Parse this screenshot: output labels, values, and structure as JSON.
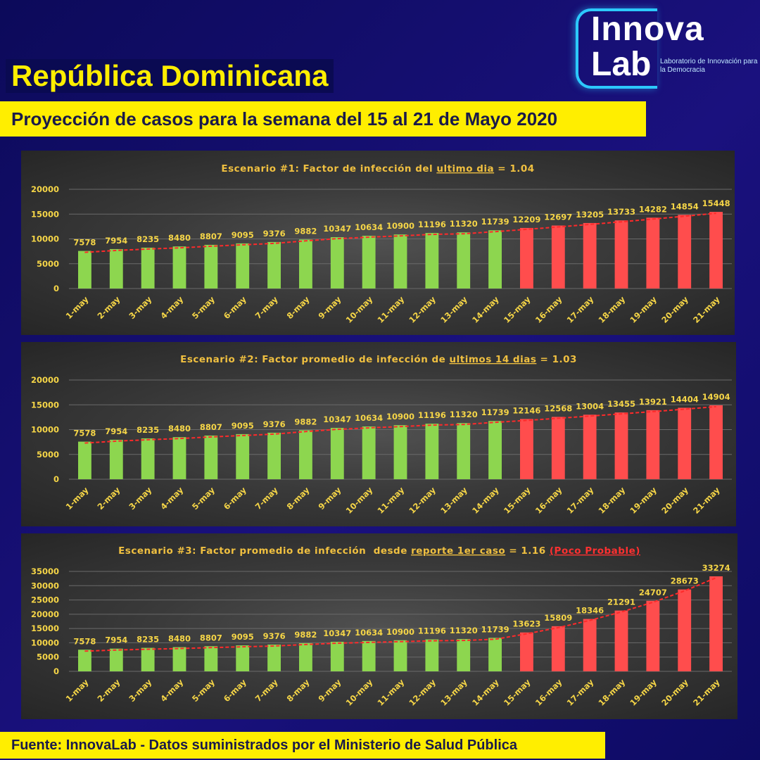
{
  "header": {
    "title": "República Dominicana",
    "subtitle": "Proyección de casos para la semana del 15 al 21 de Mayo 2020"
  },
  "logo": {
    "line1": "Innova",
    "line2": "Lab",
    "tagline": "Laboratorio de Innovación para la Democracia"
  },
  "footer": {
    "source": "Fuente: InnovaLab - Datos suministrados por el Ministerio de Salud Pública"
  },
  "colors": {
    "observed": "#8dd64f",
    "projected": "#ff4d4d",
    "trend": "#ff2a2a",
    "labels": "#f5d547",
    "title_text": "#f0c040"
  },
  "chart_data": [
    {
      "type": "bar",
      "title_parts": [
        {
          "text": "Escenario #1: Factor de infección del ",
          "style": "normal"
        },
        {
          "text": "ultimo dia",
          "style": "underline"
        },
        {
          "text": " = 1.04",
          "style": "normal"
        }
      ],
      "categories": [
        "1-may",
        "2-may",
        "3-may",
        "4-may",
        "5-may",
        "6-may",
        "7-may",
        "8-may",
        "9-may",
        "10-may",
        "11-may",
        "12-may",
        "13-may",
        "14-may",
        "15-may",
        "16-may",
        "17-may",
        "18-may",
        "19-may",
        "20-may",
        "21-may"
      ],
      "series": [
        {
          "values": [
            7578,
            7954,
            8235,
            8480,
            8807,
            9095,
            9376,
            9882,
            10347,
            10634,
            10900,
            11196,
            11320,
            11739,
            null,
            null,
            null,
            null,
            null,
            null,
            null
          ]
        },
        {
          "values": [
            null,
            null,
            null,
            null,
            null,
            null,
            null,
            null,
            null,
            null,
            null,
            null,
            null,
            null,
            12209,
            12697,
            13205,
            13733,
            14282,
            14854,
            15448
          ]
        }
      ],
      "ylim": [
        0,
        20000
      ],
      "yticks": [
        0,
        5000,
        10000,
        15000,
        20000
      ],
      "trendline": true,
      "grid": true
    },
    {
      "type": "bar",
      "title_parts": [
        {
          "text": "Escenario #2: Factor promedio de infección de ",
          "style": "normal"
        },
        {
          "text": "ultimos 14 dias",
          "style": "underline"
        },
        {
          "text": " = 1.03",
          "style": "normal"
        }
      ],
      "categories": [
        "1-may",
        "2-may",
        "3-may",
        "4-may",
        "5-may",
        "6-may",
        "7-may",
        "8-may",
        "9-may",
        "10-may",
        "11-may",
        "12-may",
        "13-may",
        "14-may",
        "15-may",
        "16-may",
        "17-may",
        "18-may",
        "19-may",
        "20-may",
        "21-may"
      ],
      "series": [
        {
          "values": [
            7578,
            7954,
            8235,
            8480,
            8807,
            9095,
            9376,
            9882,
            10347,
            10634,
            10900,
            11196,
            11320,
            11739,
            null,
            null,
            null,
            null,
            null,
            null,
            null
          ]
        },
        {
          "values": [
            null,
            null,
            null,
            null,
            null,
            null,
            null,
            null,
            null,
            null,
            null,
            null,
            null,
            null,
            12146,
            12568,
            13004,
            13455,
            13921,
            14404,
            14904
          ]
        }
      ],
      "ylim": [
        0,
        20000
      ],
      "yticks": [
        0,
        5000,
        10000,
        15000,
        20000
      ],
      "trendline": true,
      "grid": true
    },
    {
      "type": "bar",
      "title_parts": [
        {
          "text": "Escenario #3: Factor promedio de infección  desde ",
          "style": "normal"
        },
        {
          "text": "reporte 1er caso",
          "style": "underline"
        },
        {
          "text": " = 1.16 ",
          "style": "normal"
        },
        {
          "text": "(Poco Probable)",
          "style": "red-underline"
        }
      ],
      "categories": [
        "1-may",
        "2-may",
        "3-may",
        "4-may",
        "5-may",
        "6-may",
        "7-may",
        "8-may",
        "9-may",
        "10-may",
        "11-may",
        "12-may",
        "13-may",
        "14-may",
        "15-may",
        "16-may",
        "17-may",
        "18-may",
        "19-may",
        "20-may",
        "21-may"
      ],
      "series": [
        {
          "values": [
            7578,
            7954,
            8235,
            8480,
            8807,
            9095,
            9376,
            9882,
            10347,
            10634,
            10900,
            11196,
            11320,
            11739,
            null,
            null,
            null,
            null,
            null,
            null,
            null
          ]
        },
        {
          "values": [
            null,
            null,
            null,
            null,
            null,
            null,
            null,
            null,
            null,
            null,
            null,
            null,
            null,
            null,
            13623,
            15809,
            18346,
            21291,
            24707,
            28673,
            33274
          ]
        }
      ],
      "ylim": [
        0,
        35000
      ],
      "yticks": [
        0,
        5000,
        10000,
        15000,
        20000,
        25000,
        30000,
        35000
      ],
      "trendline": true,
      "grid": true
    }
  ]
}
